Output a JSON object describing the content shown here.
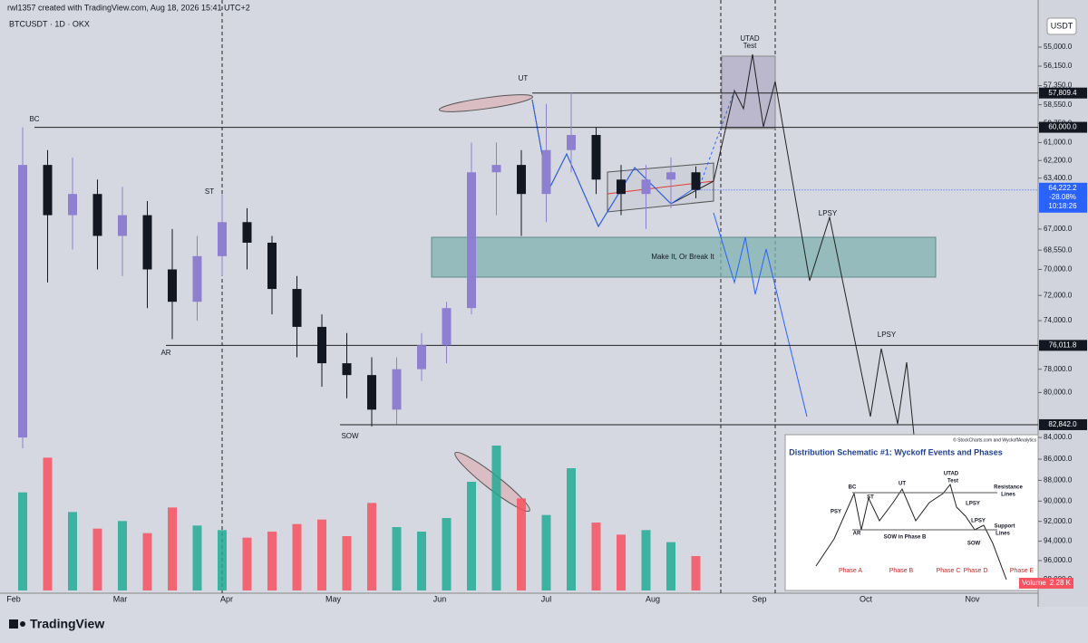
{
  "header": {
    "attribution": "rwl1357 created with TradingView.com, Aug 18, 2026 15:41 UTC+2",
    "symbol": "BTCUSDT · 1D · OKX",
    "currency": "USDT",
    "logo": "TradingView"
  },
  "chart_data": {
    "type": "candlestick",
    "log_scale": true,
    "inverted": true,
    "ylim": [
      55000,
      98000
    ],
    "yticks": [
      {
        "value": 55000,
        "label": "55,000.0"
      },
      {
        "value": 56150,
        "label": "56,150.0"
      },
      {
        "value": 57350,
        "label": "57,350.0"
      },
      {
        "value": 58550,
        "label": "58,550.0"
      },
      {
        "value": 59750,
        "label": "59,750.0"
      },
      {
        "value": 61000,
        "label": "61,000.0"
      },
      {
        "value": 62200,
        "label": "62,200.0"
      },
      {
        "value": 63400,
        "label": "63,400.0"
      },
      {
        "value": 67000,
        "label": "67,000.0"
      },
      {
        "value": 68550,
        "label": "68,550.0"
      },
      {
        "value": 70000,
        "label": "70,000.0"
      },
      {
        "value": 72000,
        "label": "72,000.0"
      },
      {
        "value": 74000,
        "label": "74,000.0"
      },
      {
        "value": 78000,
        "label": "78,000.0"
      },
      {
        "value": 80000,
        "label": "80,000.0"
      },
      {
        "value": 84000,
        "label": "84,000.0"
      },
      {
        "value": 86000,
        "label": "86,000.0"
      },
      {
        "value": 88000,
        "label": "88,000.0"
      },
      {
        "value": 90000,
        "label": "90,000.0"
      },
      {
        "value": 92000,
        "label": "92,000.0"
      },
      {
        "value": 94000,
        "label": "94,000.0"
      },
      {
        "value": 96000,
        "label": "96,000.0"
      },
      {
        "value": 98000,
        "label": "98,000.0"
      }
    ],
    "months": [
      "Feb",
      "Mar",
      "Apr",
      "May",
      "Jun",
      "Jul",
      "Aug",
      "Sep",
      "Oct",
      "Nov"
    ],
    "up_color": "#8f7fd0",
    "down_color": "#131722",
    "open": [
      84000,
      62500,
      66000,
      64500,
      67500,
      66000,
      70000,
      72500,
      69000,
      66500,
      68000,
      71500,
      74500,
      77500,
      78500,
      81500,
      78000,
      76000,
      73000,
      63000,
      62500,
      64500,
      61500,
      60500,
      63500,
      64500,
      63500,
      63000
    ],
    "close": [
      62500,
      66000,
      64500,
      67500,
      66000,
      70000,
      72500,
      69000,
      66500,
      68000,
      71500,
      74500,
      77500,
      78500,
      81500,
      78000,
      76000,
      73000,
      63000,
      62500,
      64500,
      61500,
      60500,
      63500,
      64500,
      63500,
      63000,
      64222.2
    ],
    "low": [
      60000,
      61500,
      62000,
      63500,
      64000,
      65000,
      67000,
      67500,
      64500,
      65500,
      67500,
      70500,
      73500,
      75000,
      77000,
      77000,
      75000,
      72500,
      61000,
      61000,
      61500,
      58500,
      57800,
      60000,
      62500,
      62500,
      62000,
      62600
    ],
    "high": [
      85000,
      71000,
      68500,
      70000,
      70500,
      73000,
      75500,
      74000,
      70500,
      70000,
      73500,
      77000,
      79500,
      80500,
      83000,
      82800,
      79000,
      77500,
      73500,
      66000,
      67500,
      66500,
      63000,
      64500,
      66000,
      67000,
      65500,
      64800
    ],
    "volume": {
      "name": "Volume",
      "values": [
        6.5,
        8.8,
        5.2,
        4.1,
        4.6,
        3.8,
        5.5,
        4.3,
        4.0,
        3.5,
        3.9,
        4.4,
        4.7,
        3.6,
        5.8,
        4.2,
        3.9,
        4.8,
        7.2,
        9.6,
        6.1,
        5.0,
        8.1,
        4.5,
        3.7,
        4.0,
        3.2,
        2.28
      ],
      "value_labels": [
        null,
        null,
        null,
        null,
        null,
        null,
        null,
        null,
        null,
        null,
        null,
        null,
        null,
        null,
        null,
        null,
        null,
        null,
        null,
        null,
        null,
        null,
        null,
        null,
        null,
        null,
        null,
        "2.28 K"
      ],
      "up_color": "#f7525f",
      "down_color": "#22ab94"
    },
    "levels": [
      {
        "value": 57809.4,
        "label": "57,809.4"
      },
      {
        "value": 60000,
        "label": "60,000.0"
      },
      {
        "value": 76011.8,
        "label": "76,011.8"
      },
      {
        "value": 82842,
        "label": "82,842.0"
      }
    ],
    "last_price": {
      "value": 64222.2,
      "label": "64,222.2",
      "change": -28.08,
      "change_label": "-28.08%",
      "countdown": "10:18:26"
    },
    "annotations": [
      "BC",
      "ST",
      "AR",
      "SOW",
      "UT",
      "UTAD",
      "Test",
      "LPSY",
      "LPSY",
      "Make It, Or Break It"
    ]
  },
  "inset": {
    "title": "Distribution Schematic #1: Wyckoff Events and Phases",
    "credit": "© StockCharts.com and WyckoffAnalytics",
    "labels": [
      "BC",
      "ST",
      "UT",
      "UTAD",
      "Test",
      "PSY",
      "LPSY",
      "LPSY",
      "AR",
      "SOW in Phase B",
      "SOW",
      "Resistance",
      "Lines",
      "Support",
      "Lines"
    ],
    "phases": [
      "Phase A",
      "Phase B",
      "Phase C",
      "Phase D",
      "Phase E"
    ]
  }
}
